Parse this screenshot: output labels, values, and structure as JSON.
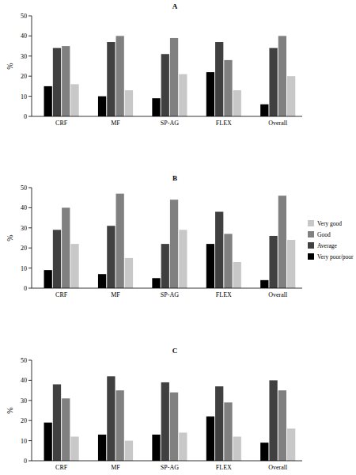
{
  "chart_data": [
    {
      "type": "bar",
      "title": "A",
      "y_label": "%",
      "categories": [
        "CRF",
        "MF",
        "SP-AG",
        "FLEX",
        "Overall"
      ],
      "series": [
        {
          "name": "Very poor/poor",
          "color": "#000000",
          "values": [
            15,
            10,
            9,
            22,
            6
          ]
        },
        {
          "name": "Average",
          "color": "#404040",
          "values": [
            34,
            37,
            31,
            37,
            34
          ]
        },
        {
          "name": "Good",
          "color": "#808080",
          "values": [
            35,
            40,
            39,
            28,
            40
          ]
        },
        {
          "name": "Very good",
          "color": "#c8c8c8",
          "values": [
            16,
            13,
            21,
            13,
            20
          ]
        }
      ],
      "ylim": [
        0,
        50
      ],
      "yticks": [
        0,
        10,
        20,
        30,
        40,
        50
      ],
      "grid": false
    },
    {
      "type": "bar",
      "title": "B",
      "y_label": "%",
      "categories": [
        "CRF",
        "MF",
        "SP-AG",
        "FLEX",
        "Overall"
      ],
      "series": [
        {
          "name": "Very poor/poor",
          "color": "#000000",
          "values": [
            9,
            7,
            5,
            22,
            4
          ]
        },
        {
          "name": "Average",
          "color": "#404040",
          "values": [
            29,
            31,
            22,
            38,
            26
          ]
        },
        {
          "name": "Good",
          "color": "#808080",
          "values": [
            40,
            47,
            44,
            27,
            46
          ]
        },
        {
          "name": "Very good",
          "color": "#c8c8c8",
          "values": [
            22,
            15,
            29,
            13,
            24
          ]
        }
      ],
      "ylim": [
        0,
        50
      ],
      "yticks": [
        0,
        10,
        20,
        30,
        40,
        50
      ],
      "grid": false,
      "legend": "right"
    },
    {
      "type": "bar",
      "title": "C",
      "y_label": "%",
      "categories": [
        "CRF",
        "MF",
        "SP-AG",
        "FLEX",
        "Overall"
      ],
      "series": [
        {
          "name": "Very poor/poor",
          "color": "#000000",
          "values": [
            19,
            13,
            13,
            22,
            9
          ]
        },
        {
          "name": "Average",
          "color": "#404040",
          "values": [
            38,
            42,
            39,
            37,
            40
          ]
        },
        {
          "name": "Good",
          "color": "#808080",
          "values": [
            31,
            35,
            34,
            29,
            35
          ]
        },
        {
          "name": "Very good",
          "color": "#c8c8c8",
          "values": [
            12,
            10,
            14,
            12,
            16
          ]
        }
      ],
      "ylim": [
        0,
        50
      ],
      "yticks": [
        0,
        10,
        20,
        30,
        40,
        50
      ],
      "grid": false
    }
  ]
}
